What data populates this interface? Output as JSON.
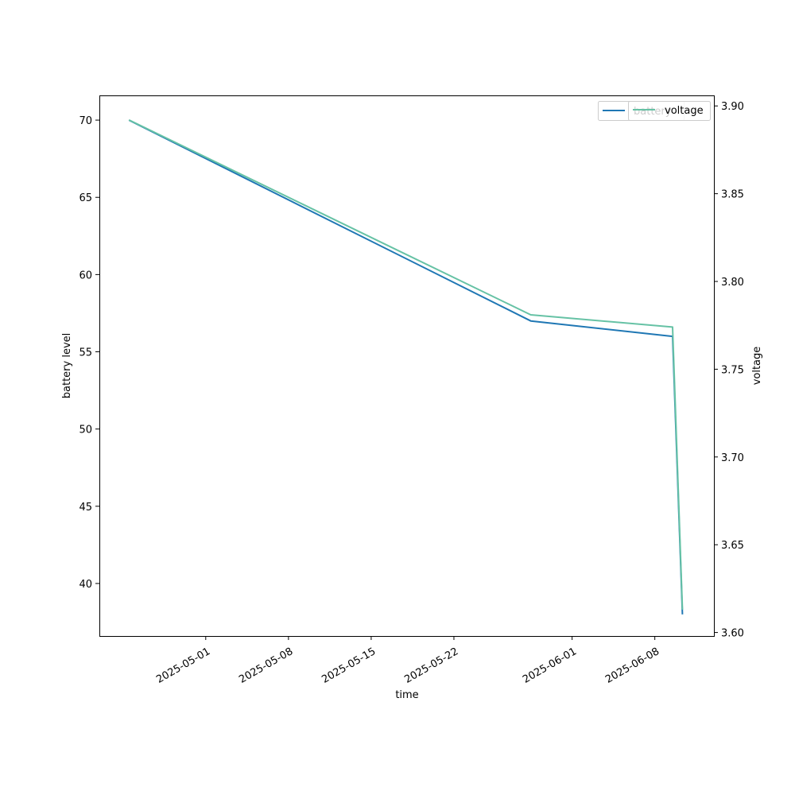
{
  "chart_data": {
    "type": "line",
    "xlabel": "time",
    "ylabel_left": "battery level",
    "ylabel_right": "voltage",
    "x_ticks": [
      "2025-05-01",
      "2025-05-08",
      "2025-05-15",
      "2025-05-22",
      "2025-06-01",
      "2025-06-08"
    ],
    "y_left_ticks": [
      40,
      45,
      50,
      55,
      60,
      65,
      70
    ],
    "y_right_ticks": [
      "3.60",
      "3.65",
      "3.70",
      "3.75",
      "3.80",
      "3.85",
      "3.90"
    ],
    "ylim_left": [
      36.6,
      71.6
    ],
    "ylim_right": [
      3.598,
      3.906
    ],
    "xlim": [
      "2025-04-22",
      "2025-06-13"
    ],
    "legend_position": "top-right",
    "series": [
      {
        "name": "battery",
        "axis": "left",
        "color": "#1f77b4",
        "points": [
          {
            "x": "2025-04-24T12:00",
            "y": 70
          },
          {
            "x": "2025-05-28T12:00",
            "y": 57
          },
          {
            "x": "2025-06-09T12:00",
            "y": 56
          },
          {
            "x": "2025-06-10T08:00",
            "y": 38
          }
        ]
      },
      {
        "name": "voltage",
        "axis": "right",
        "color": "#66c2a5",
        "points": [
          {
            "x": "2025-04-24T12:00",
            "y": 3.892
          },
          {
            "x": "2025-05-28T12:00",
            "y": 3.781
          },
          {
            "x": "2025-06-09T12:00",
            "y": 3.774
          },
          {
            "x": "2025-06-10T08:00",
            "y": 3.613
          }
        ]
      }
    ]
  }
}
